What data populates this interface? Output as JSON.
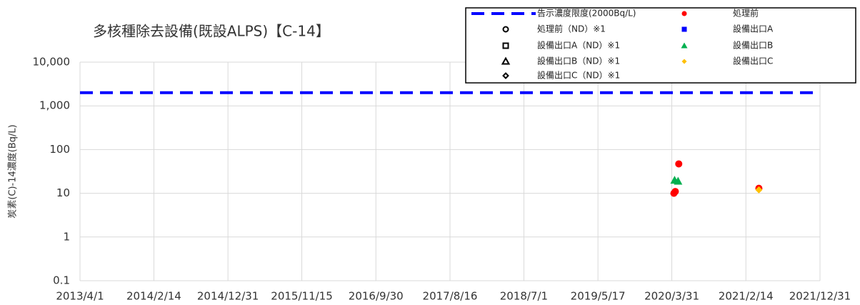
{
  "chart_data": {
    "type": "scatter",
    "title": "多核種除去設備(既設ALPS)【C-14】",
    "ylabel": "炭素(C)-14濃度(Bq/L)",
    "log_y": true,
    "grid": true,
    "xlim": [
      "2013/4/1",
      "2021/12/31"
    ],
    "xticks": [
      "2013/4/1",
      "2014/2/14",
      "2014/12/31",
      "2015/11/15",
      "2016/9/30",
      "2017/8/16",
      "2018/7/1",
      "2019/5/17",
      "2020/3/31",
      "2021/2/14",
      "2021/12/31"
    ],
    "ylim": [
      0.1,
      10000
    ],
    "yticks": [
      0.1,
      1,
      10,
      100,
      {
        "value": 1000,
        "label": "1,000"
      },
      {
        "value": 10000,
        "label": "10,000"
      }
    ],
    "series": [
      {
        "name": "告示濃度限度(2000Bq/L)",
        "color": "#0000ff",
        "marker": "dash",
        "x": [
          "2013/4/1",
          "2021/12/31"
        ],
        "values": [
          2000,
          2000
        ]
      },
      {
        "name": "処理前（ND）※1",
        "color": "#000000",
        "marker": "circle",
        "filled": false,
        "x": [],
        "values": []
      },
      {
        "name": "設備出口A（ND）※1",
        "color": "#000000",
        "marker": "square",
        "filled": false,
        "x": [],
        "values": []
      },
      {
        "name": "設備出口B（ND）※1",
        "color": "#000000",
        "marker": "triangle",
        "filled": false,
        "x": [],
        "values": []
      },
      {
        "name": "設備出口C（ND）※1",
        "color": "#000000",
        "marker": "diamond",
        "filled": false,
        "x": [],
        "values": []
      },
      {
        "name": "処理前",
        "color": "#ff0000",
        "marker": "circle",
        "filled": true,
        "x": [
          "2020/4/9",
          "2020/4/15",
          "2020/4/30",
          "2021/4/11"
        ],
        "values": [
          10,
          11,
          47,
          13
        ]
      },
      {
        "name": "設備出口A",
        "color": "#0000ff",
        "marker": "square",
        "filled": true,
        "x": [],
        "values": []
      },
      {
        "name": "設備出口B",
        "color": "#00b050",
        "marker": "triangle",
        "filled": true,
        "x": [
          "2020/4/12",
          "2020/4/27"
        ],
        "values": [
          20,
          19
        ]
      },
      {
        "name": "設備出口C",
        "color": "#ffc000",
        "marker": "diamond",
        "filled": true,
        "x": [
          "2021/4/11"
        ],
        "values": [
          12
        ]
      }
    ]
  }
}
